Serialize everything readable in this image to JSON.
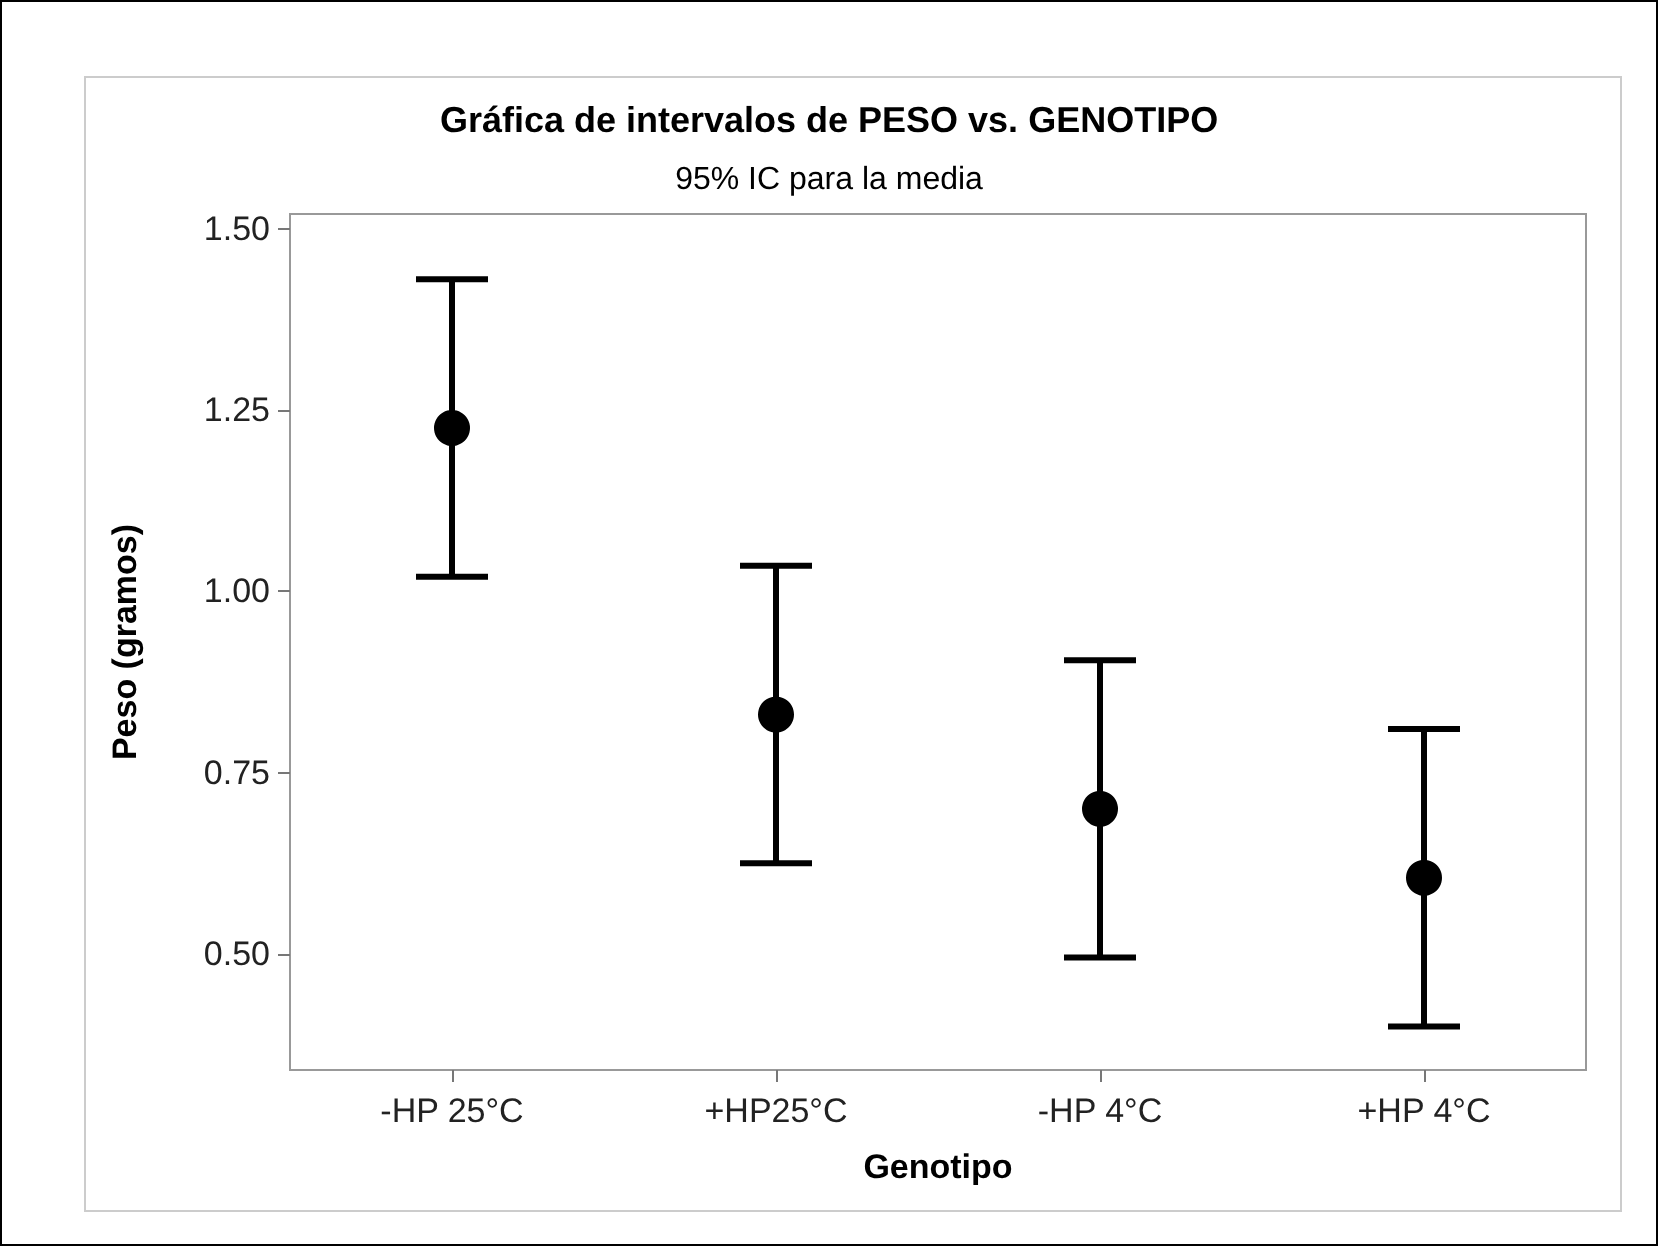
{
  "chart_data": {
    "type": "scatter",
    "title": "Gráfica de intervalos de PESO vs. GENOTIPO",
    "subtitle": "95% IC para la media",
    "xlabel": "Genotipo",
    "ylabel": "Peso (gramos)",
    "categories": [
      "-HP 25°C",
      "+HP25°C",
      "-HP 4°C",
      "+HP 4°C"
    ],
    "values": [
      1.225,
      0.83,
      0.7,
      0.605
    ],
    "errors": [
      0.205,
      0.205,
      0.205,
      0.205
    ],
    "color": "#000000",
    "marker": "circle",
    "grid": false,
    "ylim": [
      0.34,
      1.52
    ],
    "yticks": [
      {
        "value": 0.5,
        "label": "0.50"
      },
      {
        "value": 0.75,
        "label": "0.75"
      },
      {
        "value": 1,
        "label": "1.00"
      },
      {
        "value": 1.25,
        "label": "1.25"
      },
      {
        "value": 1.5,
        "label": "1.50"
      }
    ]
  }
}
